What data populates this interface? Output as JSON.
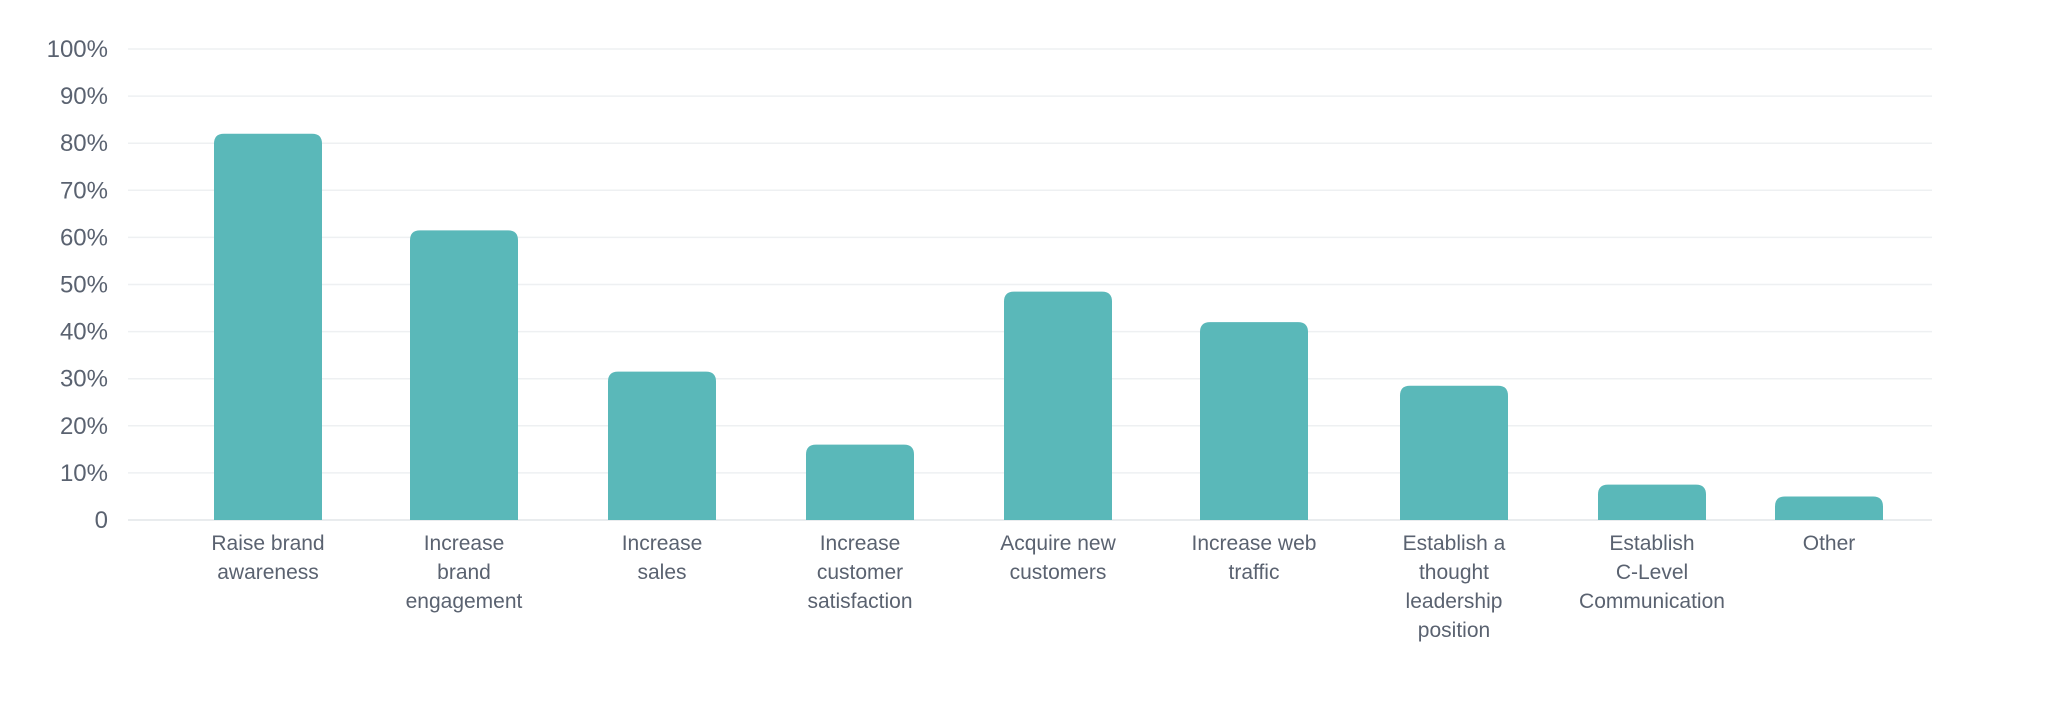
{
  "chart_data": {
    "type": "bar",
    "title": "",
    "xlabel": "",
    "ylabel": "",
    "ylim": [
      0,
      100
    ],
    "y_ticks": [
      "0",
      "10%",
      "20%",
      "30%",
      "40%",
      "50%",
      "60%",
      "70%",
      "80%",
      "90%",
      "100%"
    ],
    "grid": true,
    "bar_color": "#5ab8b9",
    "categories": [
      [
        "Raise brand",
        "awareness"
      ],
      [
        "Increase",
        "brand",
        "engagement"
      ],
      [
        "Increase",
        "sales"
      ],
      [
        "Increase",
        "customer",
        "satisfaction"
      ],
      [
        "Acquire new",
        "customers"
      ],
      [
        "Increase web",
        "traffic"
      ],
      [
        "Establish a",
        "thought",
        "leadership",
        "position"
      ],
      [
        "Establish",
        "C-Level",
        "Communication"
      ],
      [
        "Other"
      ]
    ],
    "values": [
      82,
      61.5,
      31.5,
      16,
      48.5,
      42,
      28.5,
      7.5,
      5
    ]
  }
}
